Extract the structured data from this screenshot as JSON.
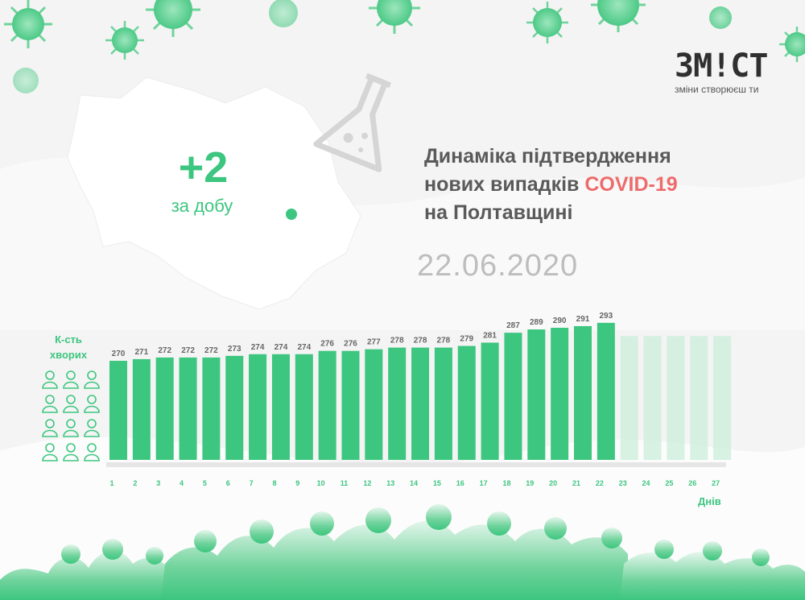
{
  "logo": {
    "name": "ЗМ!СТ",
    "tagline": "зміни створюєш ти"
  },
  "summary": {
    "delta": "+2",
    "delta_label": "за добу"
  },
  "headline": {
    "line1": "Динаміка підтвердження",
    "line2_prefix": "нових випадків ",
    "line2_accent": "COVID-19",
    "line3": "на Полтавщині"
  },
  "date": "22.06.2020",
  "colors": {
    "green": "#3cc67f",
    "accent_red": "#ee6b6b",
    "bar_future": "#c8ecd8"
  },
  "chart_data": {
    "type": "bar",
    "title": "Динаміка підтвердження нових випадків COVID-19 на Полтавщині",
    "ylabel": "К-сть хворих",
    "xlabel": "Днів",
    "categories": [
      "1",
      "2",
      "3",
      "4",
      "5",
      "6",
      "7",
      "8",
      "9",
      "10",
      "11",
      "12",
      "13",
      "14",
      "15",
      "16",
      "17",
      "18",
      "19",
      "20",
      "21",
      "22",
      "23",
      "24",
      "25",
      "26",
      "27"
    ],
    "values": [
      270,
      271,
      272,
      272,
      272,
      273,
      274,
      274,
      274,
      276,
      276,
      277,
      278,
      278,
      278,
      279,
      281,
      287,
      289,
      290,
      291,
      293,
      null,
      null,
      null,
      null,
      null
    ],
    "grid": false,
    "legend": "none"
  }
}
